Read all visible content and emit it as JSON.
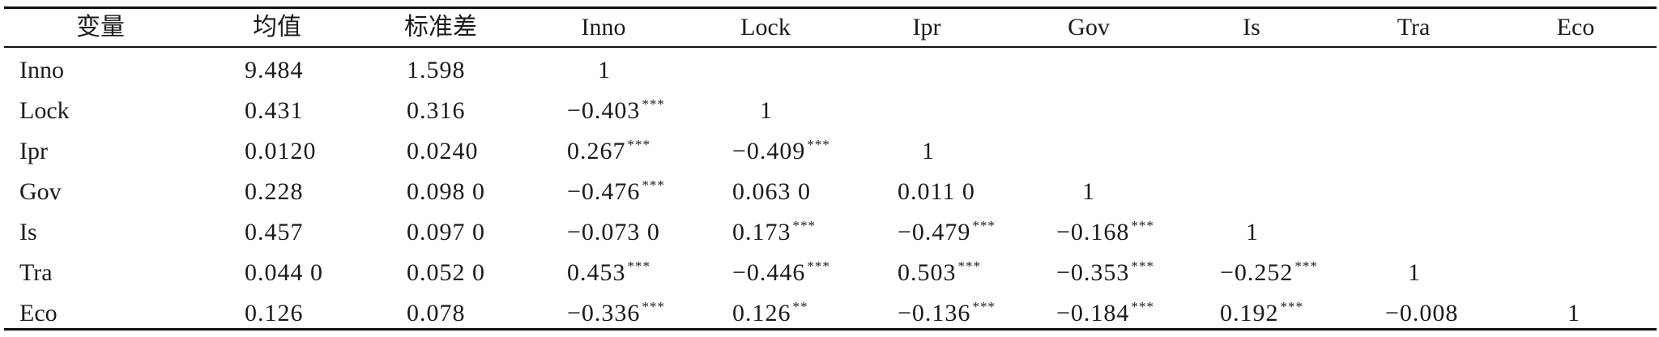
{
  "header": [
    "变量",
    "均值",
    "标准差",
    "Inno",
    "Lock",
    "Ipr",
    "Gov",
    "Is",
    "Tra",
    "Eco"
  ],
  "rows": [
    {
      "var": "Inno",
      "mean": "9.484",
      "sd": "1.598",
      "corr": [
        {
          "v": "1",
          "s": ""
        }
      ]
    },
    {
      "var": "Lock",
      "mean": "0.431",
      "sd": "0.316",
      "corr": [
        {
          "v": "−0.403",
          "s": "***"
        },
        {
          "v": "1",
          "s": ""
        }
      ]
    },
    {
      "var": "Ipr",
      "mean": "0.0120",
      "sd": "0.0240",
      "corr": [
        {
          "v": "0.267",
          "s": "***"
        },
        {
          "v": "−0.409",
          "s": "***"
        },
        {
          "v": "1",
          "s": ""
        }
      ]
    },
    {
      "var": "Gov",
      "mean": "0.228",
      "sd": "0.098 0",
      "corr": [
        {
          "v": "−0.476",
          "s": "***"
        },
        {
          "v": "0.063 0",
          "s": ""
        },
        {
          "v": "0.011 0",
          "s": ""
        },
        {
          "v": "1",
          "s": ""
        }
      ]
    },
    {
      "var": "Is",
      "mean": "0.457",
      "sd": "0.097 0",
      "corr": [
        {
          "v": "−0.073 0",
          "s": ""
        },
        {
          "v": "0.173",
          "s": "***"
        },
        {
          "v": "−0.479",
          "s": "***"
        },
        {
          "v": "−0.168",
          "s": "***"
        },
        {
          "v": "1",
          "s": ""
        }
      ]
    },
    {
      "var": "Tra",
      "mean": "0.044 0",
      "sd": "0.052 0",
      "corr": [
        {
          "v": "0.453",
          "s": "***"
        },
        {
          "v": "−0.446",
          "s": "***"
        },
        {
          "v": "0.503",
          "s": "***"
        },
        {
          "v": "−0.353",
          "s": "***"
        },
        {
          "v": "−0.252",
          "s": "***"
        },
        {
          "v": "1",
          "s": ""
        }
      ]
    },
    {
      "var": "Eco",
      "mean": "0.126",
      "sd": "0.078",
      "corr": [
        {
          "v": "−0.336",
          "s": "***"
        },
        {
          "v": "0.126",
          "s": "**"
        },
        {
          "v": "−0.136",
          "s": "***"
        },
        {
          "v": "−0.184",
          "s": "***"
        },
        {
          "v": "0.192",
          "s": "***"
        },
        {
          "v": "−0.008",
          "s": ""
        },
        {
          "v": "1",
          "s": ""
        }
      ]
    }
  ]
}
